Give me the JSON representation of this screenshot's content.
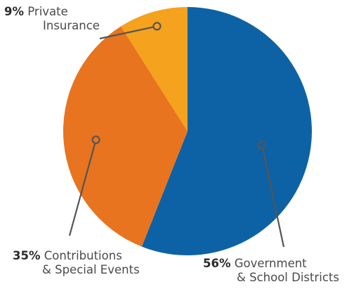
{
  "chart_data": {
    "type": "pie",
    "slices": [
      {
        "name": "Government & School Districts",
        "value": 56,
        "pct_label": "56%",
        "label_line1": "Government",
        "label_line2": "& School Districts",
        "color": "#0d62a5"
      },
      {
        "name": "Contributions & Special Events",
        "value": 35,
        "pct_label": "35%",
        "label_line1": "Contributions",
        "label_line2": "& Special Events",
        "color": "#e8741f"
      },
      {
        "name": "Private Insurance",
        "value": 9,
        "pct_label": "9%",
        "label_line1": "Private",
        "label_line2": "Insurance",
        "color": "#f5a21e"
      }
    ],
    "start": "12 o'clock",
    "direction": "clockwise",
    "legend": "none",
    "leader_color": "#555555"
  }
}
